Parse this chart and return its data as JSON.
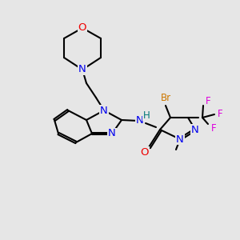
{
  "background_color": "#e6e6e6",
  "bond_color": "#000000",
  "bond_width": 1.5,
  "atom_colors": {
    "N": "#0000ee",
    "O": "#ee0000",
    "Br": "#cc7700",
    "F": "#dd00dd",
    "H": "#007777",
    "C": "#000000"
  },
  "font_size": 8.5,
  "fig_size": [
    3.0,
    3.0
  ],
  "dpi": 100
}
